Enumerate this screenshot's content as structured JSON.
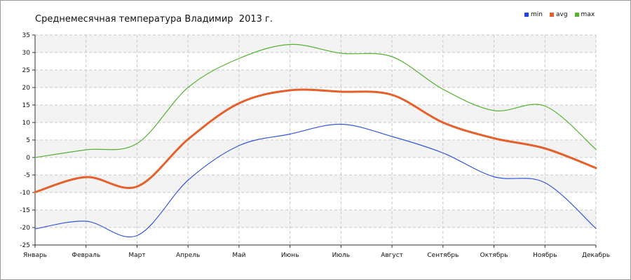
{
  "chart_data": {
    "type": "line",
    "title": "Среднемесячная температура Владимир  2013 г.",
    "categories": [
      "Январь",
      "Февраль",
      "Март",
      "Апрель",
      "Май",
      "Июнь",
      "Июль",
      "Август",
      "Сентябрь",
      "Октябрь",
      "Ноябрь",
      "Декабрь"
    ],
    "ylim": [
      -25,
      35
    ],
    "yticks": [
      -25,
      -20,
      -15,
      -10,
      -5,
      0,
      5,
      10,
      15,
      20,
      25,
      30,
      35
    ],
    "grid": true,
    "legend_position": "top-right",
    "series": [
      {
        "name": "min",
        "color": "#3355dd",
        "values": [
          -20.4,
          -18.2,
          -22.3,
          -6.5,
          3.4,
          6.7,
          9.5,
          6.0,
          1.3,
          -5.5,
          -7.2,
          -20.3
        ]
      },
      {
        "name": "avg",
        "color": "#e5602a",
        "values": [
          -9.9,
          -5.6,
          -8.3,
          5.2,
          15.5,
          19.2,
          18.8,
          17.9,
          10.0,
          5.5,
          2.6,
          -3.0
        ]
      },
      {
        "name": "max",
        "color": "#55b234",
        "values": [
          0.0,
          2.2,
          4.0,
          20.0,
          28.3,
          32.3,
          29.8,
          28.8,
          19.5,
          13.4,
          14.7,
          2.3
        ]
      }
    ]
  }
}
